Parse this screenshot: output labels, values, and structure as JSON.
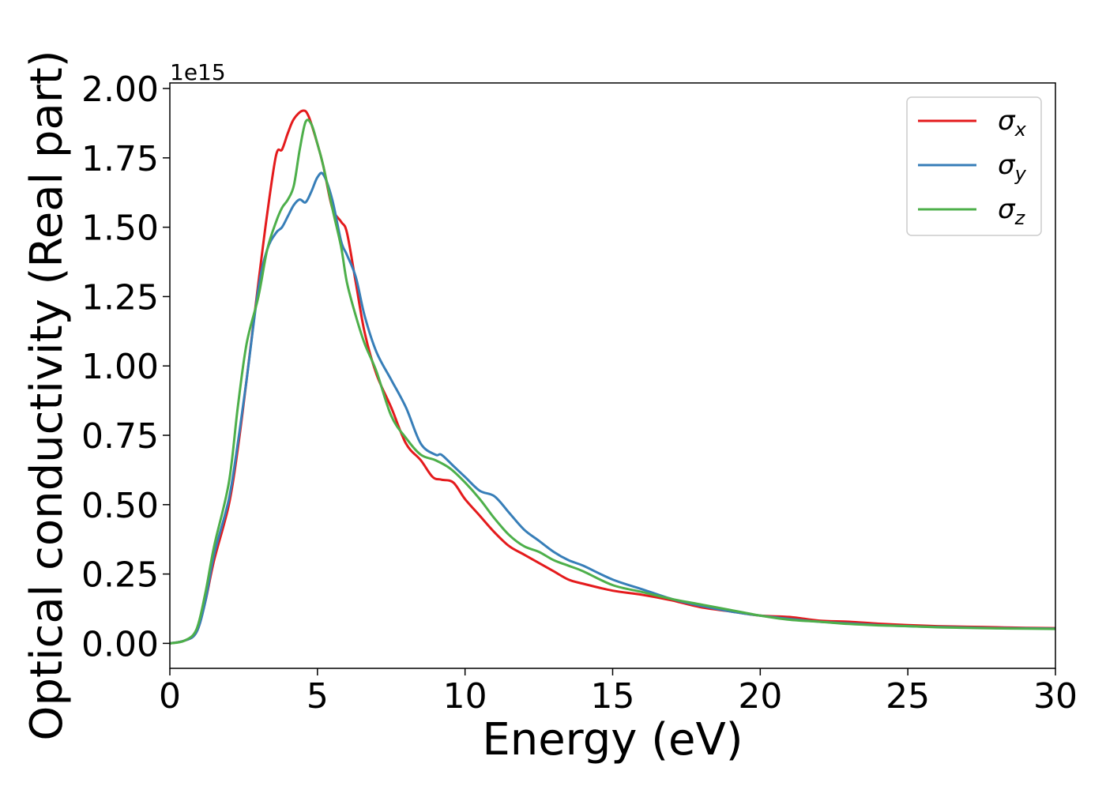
{
  "chart_data": {
    "type": "line",
    "title": "",
    "xlabel": "Energy (eV)",
    "ylabel": "Optical conductivity (Real part)",
    "y_offset_label": "1e15",
    "y_scale": 1000000000000000.0,
    "xlim": [
      0,
      30
    ],
    "ylim": [
      -0.09,
      2.02
    ],
    "xticks": [
      0,
      5,
      10,
      15,
      20,
      25,
      30
    ],
    "xtick_labels": [
      "0",
      "5",
      "10",
      "15",
      "20",
      "25",
      "30"
    ],
    "yticks": [
      0.0,
      0.25,
      0.5,
      0.75,
      1.0,
      1.25,
      1.5,
      1.75,
      2.0
    ],
    "ytick_labels": [
      "0.00",
      "0.25",
      "0.50",
      "0.75",
      "1.00",
      "1.25",
      "1.50",
      "1.75",
      "2.00"
    ],
    "grid": false,
    "legend_position": "top-right",
    "series": [
      {
        "name": "σx",
        "symbol": "σ",
        "subscript": "x",
        "color": "#e41a1c",
        "x": [
          0,
          0.5,
          0.9,
          1.2,
          1.5,
          2.0,
          2.3,
          2.6,
          3.0,
          3.3,
          3.6,
          3.8,
          4.0,
          4.2,
          4.5,
          4.7,
          5.0,
          5.2,
          5.5,
          5.8,
          6.0,
          6.3,
          6.6,
          7.0,
          7.5,
          8.0,
          8.5,
          8.9,
          9.2,
          9.6,
          10.0,
          10.5,
          11.0,
          11.5,
          12.0,
          12.5,
          13.0,
          13.5,
          14.0,
          15.0,
          16.0,
          17.0,
          18.0,
          19.0,
          20.0,
          21.0,
          22.0,
          23.0,
          24.0,
          25.0,
          26.0,
          27.0,
          28.0,
          29.0,
          30.0
        ],
        "values": [
          0.0,
          0.01,
          0.04,
          0.15,
          0.3,
          0.5,
          0.7,
          0.95,
          1.3,
          1.55,
          1.76,
          1.78,
          1.84,
          1.89,
          1.92,
          1.9,
          1.8,
          1.72,
          1.57,
          1.52,
          1.48,
          1.3,
          1.12,
          0.97,
          0.85,
          0.72,
          0.66,
          0.6,
          0.59,
          0.58,
          0.52,
          0.46,
          0.4,
          0.35,
          0.32,
          0.29,
          0.26,
          0.23,
          0.215,
          0.19,
          0.175,
          0.155,
          0.13,
          0.115,
          0.1,
          0.095,
          0.082,
          0.078,
          0.071,
          0.066,
          0.062,
          0.06,
          0.058,
          0.056,
          0.055
        ]
      },
      {
        "name": "σy",
        "symbol": "σ",
        "subscript": "y",
        "color": "#377eb8",
        "x": [
          0,
          0.5,
          0.9,
          1.2,
          1.5,
          2.0,
          2.3,
          2.6,
          3.0,
          3.3,
          3.6,
          3.8,
          4.0,
          4.2,
          4.4,
          4.6,
          4.8,
          5.0,
          5.2,
          5.5,
          5.8,
          6.0,
          6.3,
          6.6,
          7.0,
          7.5,
          8.0,
          8.5,
          9.0,
          9.2,
          9.6,
          10.0,
          10.5,
          11.0,
          11.5,
          12.0,
          12.5,
          13.0,
          13.5,
          14.0,
          15.0,
          16.0,
          17.0,
          18.0,
          19.0,
          20.0,
          21.0,
          22.0,
          23.0,
          24.0,
          25.0,
          26.0,
          27.0,
          28.0,
          29.0,
          30.0
        ],
        "values": [
          0.0,
          0.01,
          0.04,
          0.15,
          0.32,
          0.52,
          0.72,
          0.95,
          1.28,
          1.42,
          1.48,
          1.5,
          1.54,
          1.58,
          1.6,
          1.59,
          1.63,
          1.68,
          1.69,
          1.6,
          1.45,
          1.4,
          1.32,
          1.18,
          1.05,
          0.95,
          0.85,
          0.72,
          0.68,
          0.68,
          0.64,
          0.6,
          0.55,
          0.53,
          0.47,
          0.41,
          0.37,
          0.33,
          0.3,
          0.28,
          0.23,
          0.195,
          0.16,
          0.135,
          0.115,
          0.1,
          0.088,
          0.078,
          0.072,
          0.066,
          0.062,
          0.059,
          0.057,
          0.055,
          0.054,
          0.053
        ]
      },
      {
        "name": "σz",
        "symbol": "σ",
        "subscript": "z",
        "color": "#4daf4a",
        "x": [
          0,
          0.5,
          0.9,
          1.2,
          1.5,
          2.0,
          2.3,
          2.6,
          3.0,
          3.3,
          3.6,
          3.8,
          4.0,
          4.2,
          4.4,
          4.6,
          4.8,
          5.0,
          5.2,
          5.5,
          5.8,
          6.0,
          6.3,
          6.6,
          7.0,
          7.5,
          8.0,
          8.5,
          9.0,
          9.5,
          10.0,
          10.5,
          11.0,
          11.5,
          12.0,
          12.5,
          13.0,
          13.5,
          14.0,
          15.0,
          16.0,
          17.0,
          18.0,
          19.0,
          20.0,
          21.0,
          22.0,
          23.0,
          24.0,
          25.0,
          26.0,
          27.0,
          28.0,
          29.0,
          30.0
        ],
        "values": [
          0.0,
          0.01,
          0.05,
          0.18,
          0.35,
          0.58,
          0.85,
          1.08,
          1.25,
          1.42,
          1.52,
          1.57,
          1.6,
          1.65,
          1.78,
          1.88,
          1.87,
          1.8,
          1.72,
          1.57,
          1.43,
          1.3,
          1.18,
          1.08,
          0.98,
          0.82,
          0.74,
          0.68,
          0.66,
          0.63,
          0.58,
          0.52,
          0.45,
          0.39,
          0.35,
          0.33,
          0.3,
          0.28,
          0.26,
          0.21,
          0.185,
          0.16,
          0.14,
          0.12,
          0.1,
          0.085,
          0.078,
          0.07,
          0.065,
          0.062,
          0.058,
          0.056,
          0.054,
          0.053,
          0.052
        ]
      }
    ]
  }
}
